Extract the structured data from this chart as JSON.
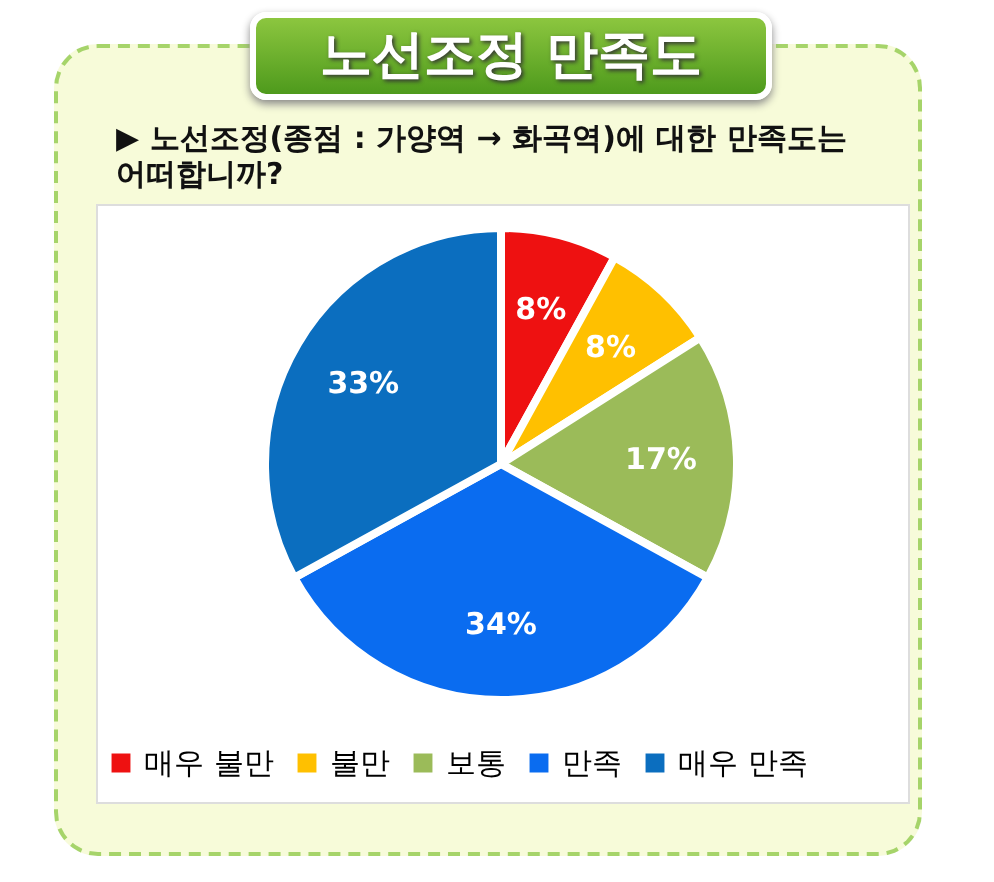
{
  "chart_data": {
    "type": "pie",
    "title": "노선조정 만족도",
    "subtitle": "▶ 노선조정(종점 : 가양역 → 화곡역)에 대한 만족도는 어떠합니까?",
    "categories": [
      "매우 불만",
      "불만",
      "보통",
      "만족",
      "매우 만족"
    ],
    "values": [
      8,
      8,
      17,
      34,
      33
    ],
    "colors": [
      "#ee1111",
      "#ffc000",
      "#9bbb59",
      "#0a6cf0",
      "#0b6ebf"
    ],
    "value_labels": [
      "8%",
      "8%",
      "17%",
      "34%",
      "33%"
    ],
    "legend": "bottom"
  }
}
